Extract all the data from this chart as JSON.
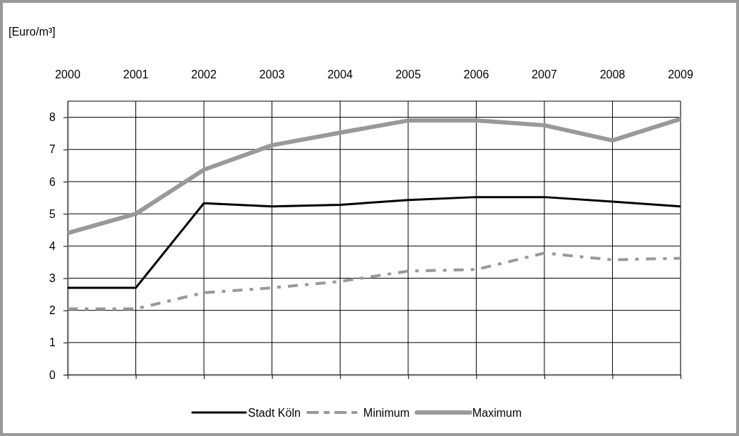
{
  "chart_data": {
    "type": "line",
    "ylabel": "[Euro/m³]",
    "categories": [
      "2000",
      "2001",
      "2002",
      "2003",
      "2004",
      "2005",
      "2006",
      "2007",
      "2008",
      "2009"
    ],
    "series": [
      {
        "name": "Stadt Köln",
        "color": "#000000",
        "line_style": "solid",
        "values": [
          2.7,
          2.7,
          5.33,
          5.23,
          5.28,
          5.43,
          5.52,
          5.52,
          5.38,
          5.23
        ]
      },
      {
        "name": "Minimum",
        "color": "#999999",
        "line_style": "dashed",
        "values": [
          2.05,
          2.05,
          2.55,
          2.7,
          2.9,
          3.22,
          3.27,
          3.78,
          3.57,
          3.62
        ]
      },
      {
        "name": "Maximum",
        "color": "#999999",
        "line_style": "solid",
        "values": [
          4.4,
          5.0,
          6.37,
          7.13,
          7.52,
          7.9,
          7.9,
          7.75,
          7.28,
          7.95
        ]
      }
    ],
    "ylim": [
      0,
      8.5
    ],
    "yticks": [
      0,
      1,
      2,
      3,
      4,
      5,
      6,
      7,
      8
    ],
    "grid": true,
    "legend": "bottom",
    "marker": "none"
  }
}
